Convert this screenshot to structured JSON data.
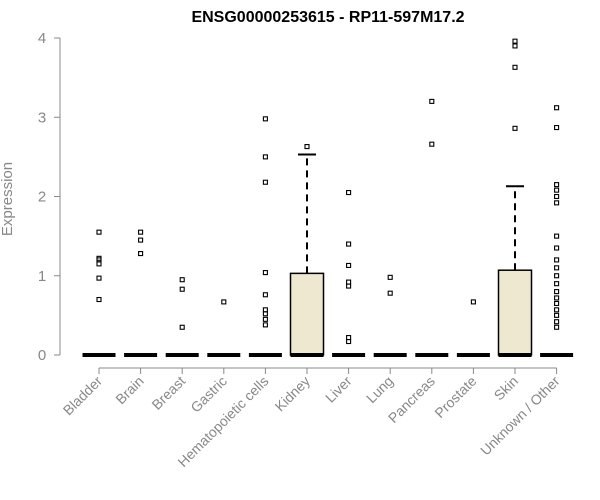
{
  "chart_data": {
    "type": "boxplot",
    "title": "ENSG00000253615 - RP11-597M17.2",
    "ylabel": "Expression",
    "ylim": [
      0,
      4
    ],
    "yticks": [
      0,
      1,
      2,
      3,
      4
    ],
    "box_color": "#ede8cf",
    "categories": [
      "Bladder",
      "Brain",
      "Breast",
      "Gastric",
      "Hematopoietic cells",
      "Kidney",
      "Liver",
      "Lung",
      "Pancreas",
      "Prostate",
      "Skin",
      "Unknown / Other"
    ],
    "boxes": [
      {
        "category": "Bladder",
        "q1": 0,
        "median": 0,
        "q3": 0,
        "whisker_high": 0,
        "outliers": [
          0.7,
          0.97,
          1.15,
          1.2,
          1.22,
          1.55
        ]
      },
      {
        "category": "Brain",
        "q1": 0,
        "median": 0,
        "q3": 0,
        "whisker_high": 0,
        "outliers": [
          1.28,
          1.45,
          1.55
        ]
      },
      {
        "category": "Breast",
        "q1": 0,
        "median": 0,
        "q3": 0,
        "whisker_high": 0,
        "outliers": [
          0.35,
          0.83,
          0.95
        ]
      },
      {
        "category": "Gastric",
        "q1": 0,
        "median": 0,
        "q3": 0,
        "whisker_high": 0,
        "outliers": [
          0.67
        ]
      },
      {
        "category": "Hematopoietic cells",
        "q1": 0,
        "median": 0,
        "q3": 0,
        "whisker_high": 0,
        "outliers": [
          0.38,
          0.45,
          0.52,
          0.57,
          0.76,
          1.04,
          2.18,
          2.5,
          2.98
        ]
      },
      {
        "category": "Kidney",
        "q1": 0,
        "median": 0,
        "q3": 1.03,
        "whisker_high": 2.53,
        "outliers": [
          2.63
        ]
      },
      {
        "category": "Liver",
        "q1": 0,
        "median": 0,
        "q3": 0,
        "whisker_high": 0,
        "outliers": [
          0.17,
          0.22,
          0.87,
          0.92,
          1.13,
          1.4,
          2.05
        ]
      },
      {
        "category": "Lung",
        "q1": 0,
        "median": 0,
        "q3": 0,
        "whisker_high": 0,
        "outliers": [
          0.78,
          0.98
        ]
      },
      {
        "category": "Pancreas",
        "q1": 0,
        "median": 0,
        "q3": 0,
        "whisker_high": 0,
        "outliers": [
          2.66,
          3.2
        ]
      },
      {
        "category": "Prostate",
        "q1": 0,
        "median": 0,
        "q3": 0,
        "whisker_high": 0,
        "outliers": [
          0.67
        ]
      },
      {
        "category": "Skin",
        "q1": 0,
        "median": 0,
        "q3": 1.07,
        "whisker_high": 2.13,
        "outliers": [
          2.86,
          3.63,
          3.9,
          3.96
        ]
      },
      {
        "category": "Unknown / Other",
        "q1": 0,
        "median": 0,
        "q3": 0,
        "whisker_high": 0,
        "outliers": [
          0.35,
          0.42,
          0.5,
          0.57,
          0.65,
          0.72,
          0.8,
          0.9,
          1.0,
          1.1,
          1.2,
          1.35,
          1.5,
          1.92,
          2.0,
          2.08,
          2.15,
          2.87,
          3.12
        ]
      }
    ]
  }
}
